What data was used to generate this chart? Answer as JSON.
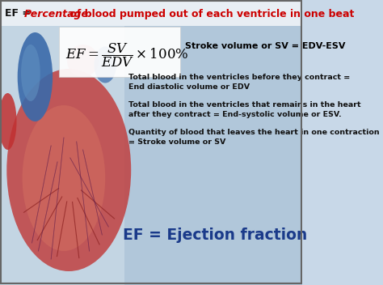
{
  "bg_color": "#c8d8e8",
  "title_bar_color": "#dce8f0",
  "right_panel_color": "#b8cedd",
  "formula_box_color": "#ffffff",
  "title_prefix": "EF = ",
  "title_italic_red": "Percentage",
  "title_suffix": " of blood pumped out of each ventricle in one beat",
  "stroke_volume_text": "Stroke volume or SV = EDV-ESV",
  "bullet1_line1": "Total blood in the ventricles before they contract =",
  "bullet1_line2": "End diastolic volume or EDV",
  "bullet2_line1": "Total blood in the ventricles that remains in the heart",
  "bullet2_line2": "after they contract = End-systolic volume or ESV.",
  "bullet3_line1": "Quantity of blood that leaves the heart in one contraction",
  "bullet3_line2": "= Stroke volume or SV",
  "ef_text": "EF = Ejection fraction",
  "title_color_black": "#111111",
  "title_color_red": "#cc0000",
  "bullet_color": "#111111",
  "ef_color": "#1a3a8a",
  "border_color": "#666666",
  "heart_dark_red": "#8b2020",
  "heart_mid_red": "#c04040",
  "heart_light_red": "#d47060",
  "heart_blue": "#3a6aaa",
  "heart_light_blue": "#6090c0",
  "heart_pink": "#e08080"
}
